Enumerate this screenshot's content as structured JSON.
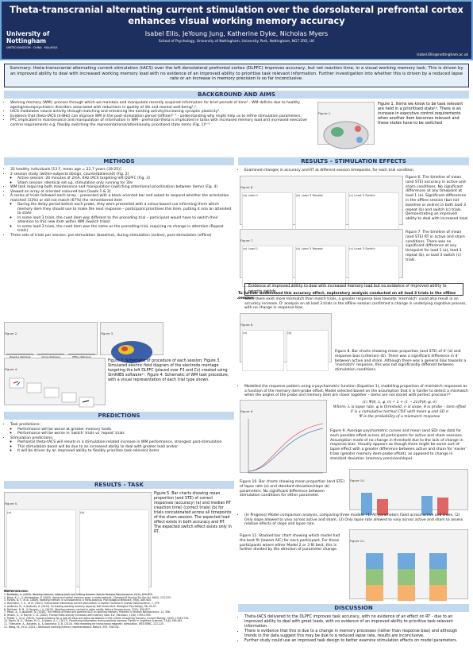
{
  "header": {
    "title": "Theta-transcranial alternating current stimulation over the dorsolateral prefrontal cortex enhances visual working memory accuracy",
    "logo": "University of Nottingham",
    "logo_sub": "UNITED KINGDOM · CHINA · MALAYSIA",
    "authors": "Isabel Ellis, JeYoung Jung, Katherine Dyke, Nicholas Myers",
    "affiliation": "School of Psychology, University of Nottingham, University Park, Nottingham, NG7 2RD, UK",
    "email": "Isabel.Ellis@nottingham.ac.uk"
  },
  "summary": "Summary: theta-transcranial alternating current stimulation (tACS) over the left dorsolateral prefrontal cortex (DLPFC) improves accuracy, but not reaction time, in a visual working memory task. This is driven by an improved ability to deal with increased working memory load with no evidence of an improved ability to prioritise task relevant information. Further investigation into whether this is driven by a reduced lapse rate or an increase in memory precision is so far inconclusive.",
  "background": {
    "heading": "BACKGROUND AND AIMS",
    "bullets": [
      "Working memory (WM): process through which we maintain and manipulate recently acquired information for brief periods of time¹ - WM deficits due to healthy ageing/neuropsychiatric disorders associated with reductions in quality of life and mental well-being²,³.",
      "tACS modulates neural activity through matching and entraining the existing activity/increasing synaptic plasticity⁴.",
      "Evidence that theta-tACS (4-8Hz) can improve WM in the post-stimulation period (offline)⁵⁻⁷ - understanding why might help us to refine stimulation parameters.",
      "PFC implicated in maintenance and manipulation of information in WM - prefrontal-theta is implicated in tasks with increased memory load and increased executive control requirements e.g. flexibly switching the representational/attentionally prioritised state items (Fig. 1)⁸⁻⁹."
    ],
    "figure_label": "Figure 1.",
    "caption": "Figure 1. Items we know to be task relevant are held in a prioritised state¹⁰. There is an increase in executive control requirements when another item becomes relevant and these states have to be switched"
  },
  "methods": {
    "heading": "METHODS",
    "bullets": [
      "32 healthy individuals [13 F, mean age = 21.7 years (19-25)]",
      {
        "text": "2 session study (within-subjects design, counterbalanced) (Fig. 2)",
        "sub": [
          "Active session: 20 minutes of 2mA, 6Hz tACS targeting left DLPFC (Fig. 3)",
          "Sham session: identical set-up, stimulation only running for 30s"
        ]
      },
      "WM task requiring both maintenance and manipulation (switching attentional prioritisation between items) (Fig. 4)",
      "Viewed an array of oriented coloured bars [loads 1 & 3]",
      {
        "text": "A series of trials followed each array – presented with a black oriented bar and asked to respond whether the orientation matched (33%) or did not match (67%) the remembered item",
        "sub": [
          "During the delay period before each probe, they were presented with a colour-based cue informing them which memory item they should use to make the next response – participant prioritises this item, putting it into an attended to state",
          "In some load 3 trials, the cued item was different to the preceding trial – participant would have to switch their attention to this new item within WM (Switch trials)",
          "In some load 3 trials, the cued item was the same as the preceding trial, requiring no change in attention (Repeat trials)"
        ]
      },
      "Three sets of trials per session: pre-stimulation (baseline), during stimulation (online), post-stimulation (offline)"
    ],
    "fig2_label": "Figure 2.",
    "fig2_steps": [
      "Baseline (Retrieval Accuracy)",
      "Online (Retrieval Accuracy)",
      "Offline (Retrieval Accuracy)"
    ],
    "fig3_label": "Figure 3.",
    "fig4_label": "Figure 4.",
    "caption": "Figure 2. Schematic of procedure of each session; Figure 3. Simulated electric field diagram of the electrode montage targeting the left DLPFC (placed over F3 and Cz) created using SimNIBS software¹¹. Figure 4. Schematic of WM task procedure, with a visual representation of each trial type shown."
  },
  "predictions": {
    "heading": "PREDICTIONS",
    "bullets": [
      {
        "text": "Task predictions:",
        "sub": [
          "Performance will be worse at greater memory loads",
          "Performance will be worse in 'switch' trials vs 'repeat' trials"
        ]
      },
      {
        "text": "Stimulation predictions:",
        "sub": [
          "Prefrontal theta-tACS will results in a stimulation-related increase in WM performance, strongest post-stimulation",
          "This stimulation boost will be due to an increased ability to deal with greater load and/or",
          "It will be driven by an improved ability to flexibly prioritise task-relevant items"
        ]
      }
    ]
  },
  "results_task": {
    "heading": "RESULTS - TASK",
    "fig_label": "Figure 5.",
    "panels": [
      "(a)",
      "(b)"
    ],
    "caption": "Figure 5. Bar charts showing mean proportion (and STE) of correct responses (accuracy) (a) and median RT (reaction time) (correct trials) (b) for trials concatenated across all timepoints of the sham session. The expected load effect exists in both accuracy and RT. The expected switch effect exists only in RT."
  },
  "references": {
    "heading": "References:",
    "items": [
      "1. Baddeley, A. (2003). Working memory: looking back and looking forward. Nature Reviews Neuroscience, 4(10), 829-839.",
      "2. Bopp, K. L., & Verhaeghen, P. (2005). Aging and verbal memory span: a meta-analysis. J Gerontol B Psychol Sci Soc Sci, 60(5), 223-233.",
      "3. Forbes, N. F., et al. (2009). Working memory in schizophrenia: a meta-analysis. Psychological Medicine, 39(6), 889-905.",
      "4. Herrmann, C. S., et al. (2013). Transcranial alternating current stimulation: a review. Frontiers in Human Neuroscience, 7, 279.",
      "5. Jaušovec, N., & Jaušovec, K. (2014). Increasing working memory capacity with theta tACS. Biological Psychology, 96, 42-47.",
      "6. Reinhart, R. M., & Nguyen, J. A. (2019). Working memory revived in older adults. Nature Neuroscience, 22(5), 820-827.",
      "7. Pahor, A., & Jaušovec, N. (2018). The effects of theta and gamma tACS on working memory. Frontiers in Human Neuroscience, 12, 506.",
      "8. Jensen, O., & Tesche, C. D. (2002). Frontal theta activity increases with memory load. Eur J Neurosci, 15(8), 1395-1399.",
      "9. Riddle, J., et al. (2020). Causal evidence for a role of theta and alpha oscillations in the control of working memory. Current Biology, 30(9), 1748-1754.",
      "10. Myers, N. E., Stokes, M. G., & Nobre, A. C. (2017). Prioritizing information during working memory. Trends in Cognitive Sciences, 21(6), 449-461.",
      "11. Thielscher, A., Antunes, A., & Saturnino, G. B. (2015). Field modeling for transcranial magnetic stimulation. IEEE EMBC, 222-225.",
      "12. Wang, W., et al. (2021). Stochastic working memory representations. Nature, 593, 538-542."
    ]
  },
  "results_stim": {
    "heading": "RESULTS – STIMULATION EFFECTS",
    "bullet1": "Examined changes in accuracy and RT at different session timepoints, for each trial condition",
    "fig6_label": "Figure 6.",
    "fig6_panels": [
      "(a) Load 1",
      "(b) Load 3 Repeat",
      "(c) Load 3 Switch"
    ],
    "fig6_caption": "Figure 6. The timeline of mean (and STE) accuracy in active and sham conditions. No significant differences at any timepoint at load 1 (a). Significant differences in the offline session (but not baseline or online) in both load 3 repeat (b) and switch (c) trials. Demonstrating an improved ability to deal with increased load.",
    "fig7_label": "Figure 7.",
    "fig7_panels": [
      "(a) Load 1",
      "(b) Load 3 Repeat",
      "(c) Load 3 Switch"
    ],
    "fig7_caption": "Figure 7. The timeline of mean (and STE) RT in active and sham conditions. There was no significant difference at any timepoint for load 1 (a), load 3 repeat (b), or load 3 switch (c) trials.",
    "box": "Evidence of improved ability to deal with increased memory load but no evidence of improved ability to priority switch.",
    "lead": "To further understand this accuracy effect, exploratory analysis conducted on all load 3 trials in the offline session:",
    "bullet2": "Since there exist more mismatch than match trials, a greater response bias towards 'mismatch' could also result in an accuracy increase. D' analysis on all load 3 trials in the offline session confirmed a change in underlying cognitive process, with no change in response bias.",
    "fig8_label": "Figure 8.",
    "fig8_panels": [
      "(a)",
      "(b)"
    ],
    "fig8_caption": "Figure 8. Bar charts showing mean proportion (and STE) of d' (a) and response bias (criterion) (b). There was a significant difference in d' between active and sham. Although there was a general bias towards a 'mismatch' response, this was not significantly different between stimulation conditions.",
    "bullet3": "Modelled the response pattern using a psychometric function (Equation 1), modelling proportion of mismatch responses as a function of the memory item-probe offset. Model selected based on the assumption that it is harder to detect a mismatch when the angles of the probe and memory item are closer together – items are not stored with perfect precision¹².",
    "fig9_label": "Figure 9.",
    "equation": [
      "(1) Ψ(θ, λ, φ, σ) = λ + (1 − 2λ)F(θ; φ, σ)",
      "Where: λ is lapse rate, φ is threshold, σ is slope, θ is probe – item offset",
      "F is a cumulative normal CDF with mean φ and SD σ",
      "Ψ is the probability of a mismatch response"
    ],
    "fig9_caption": "Figure 9. Average psychometric curves and mean (and SD) raw data for each possible offset across all participants for active and sham sessions. Assumption made of no change in threshold due to the lack of change in response bias. Visually appears as though there might be some sort of lapse effect with a greater difference between active and sham for 'easier' trials (greater memory item-probe offset), as opposed to change in standard deviation (memory precision/slope).",
    "fig10_label": "Figure 10.",
    "fig10_caption": "Figure 10. Bar charts showing mean proportion (and STE) of lapse rate (a) and standard deviation/slope (b) parameters. No significant difference between stimulation conditions for either parameter.",
    "bullet4": "(In Progress) Model comparison analysis, comparing three models: (1) All parameters fixed across active and sham, (2) Only slope allowed to vary across active and sham, (3) Only lapse rate allowed to vary across active and sham to assess relative effects of slope and lapse rate.",
    "fig11_label": "Figure 11.",
    "fig11_caption": "Figure 11. Stacked bar chart showing which model had the best fit (lowest AIC) for each participant. For those participants where either Model 2 or 3 fit best, this is further divided by the direction of parameter change."
  },
  "discussion": {
    "heading": "DISCUSSION",
    "bullets": [
      "Theta-tACS delivered to the DLPFC improves task accuracy, with no evidence of an effect on RT - due to an improved ability to deal with great loads, with no evidence of an improved ability to prioritise task-relevant information.",
      "There is evidence that this is due to a change in memory processes (rather than response bias) and although trends in the data suggest this may be due to a reduced lapse rate, results are inconclusive.",
      "Further study could use an improved task design to better examine stimulation effects on model parameters."
    ]
  }
}
